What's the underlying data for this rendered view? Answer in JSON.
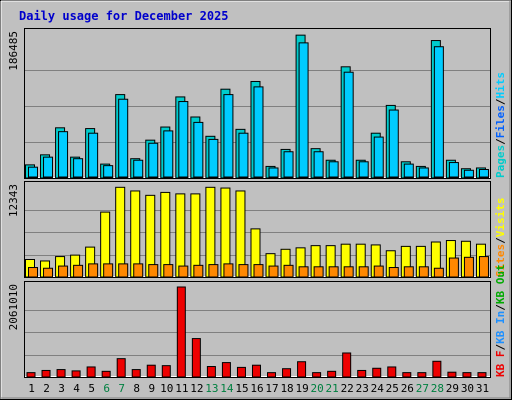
{
  "title": "Daily usage for December 2025",
  "colors": {
    "background": "#c0c0c0",
    "panel": "#c0c0c0",
    "grid": "#808080",
    "hits": "#00ccff",
    "files": "#0060ff",
    "pages": "#00cccc",
    "visits": "#ffff00",
    "sites": "#ff8800",
    "kbytes": "#ee0000",
    "kb_in": "#1e90ff",
    "kb_out": "#00aa00",
    "title_text": "#0000cc",
    "weekend_label": "#008040"
  },
  "chart_data": [
    {
      "type": "bar",
      "name": "hits-files-pages",
      "ylabel_max": "186485",
      "ylim": [
        0,
        186485
      ],
      "legend": [
        "Pages",
        "/",
        "Files",
        "/",
        "Hits"
      ],
      "legend_colors": [
        "pages",
        "black",
        "files",
        "black",
        "hits"
      ],
      "categories": [
        "1",
        "2",
        "3",
        "4",
        "5",
        "6",
        "7",
        "8",
        "9",
        "10",
        "11",
        "12",
        "13",
        "14",
        "15",
        "16",
        "17",
        "18",
        "19",
        "20",
        "21",
        "22",
        "23",
        "24",
        "25",
        "26",
        "27",
        "28",
        "29",
        "30",
        "31"
      ],
      "series": [
        {
          "name": "Hits",
          "values": [
            17000,
            30000,
            65000,
            27000,
            64000,
            18000,
            108000,
            25000,
            49000,
            66000,
            105000,
            79000,
            54000,
            115000,
            63000,
            125000,
            15000,
            37000,
            185000,
            38000,
            23000,
            144000,
            23000,
            58000,
            94000,
            21000,
            15000,
            178000,
            23000,
            12000,
            13000
          ]
        },
        {
          "name": "Files",
          "values": [
            14000,
            27000,
            60000,
            25000,
            58000,
            16000,
            102000,
            23000,
            45000,
            61000,
            99000,
            72000,
            50000,
            108000,
            58000,
            118000,
            13000,
            34000,
            175000,
            34000,
            21000,
            137000,
            21000,
            53000,
            88000,
            18000,
            13000,
            170000,
            20000,
            10000,
            11000
          ]
        },
        {
          "name": "Pages",
          "values": [
            500,
            600,
            800,
            500,
            700,
            400,
            900,
            500,
            600,
            700,
            900,
            800,
            600,
            900,
            700,
            900,
            400,
            600,
            1000,
            600,
            500,
            900,
            500,
            700,
            800,
            500,
            400,
            1000,
            500,
            400,
            400
          ]
        }
      ]
    },
    {
      "type": "bar",
      "name": "visits-sites",
      "ylabel_max": "12343",
      "ylim": [
        0,
        12343
      ],
      "legend": [
        "Sites",
        "/",
        "Visits"
      ],
      "legend_colors": [
        "sites",
        "black",
        "visits"
      ],
      "categories": [
        "1",
        "2",
        "3",
        "4",
        "5",
        "6",
        "7",
        "8",
        "9",
        "10",
        "11",
        "12",
        "13",
        "14",
        "15",
        "16",
        "17",
        "18",
        "19",
        "20",
        "21",
        "22",
        "23",
        "24",
        "25",
        "26",
        "27",
        "28",
        "29",
        "30",
        "31"
      ],
      "series": [
        {
          "name": "Visits",
          "values": [
            2400,
            2200,
            2800,
            3000,
            4100,
            8900,
            12300,
            11800,
            11200,
            11600,
            11400,
            11400,
            12300,
            12200,
            11800,
            6600,
            3200,
            3800,
            4000,
            4300,
            4300,
            4500,
            4500,
            4400,
            3600,
            4200,
            4200,
            4800,
            5000,
            4900,
            4500
          ]
        },
        {
          "name": "Sites",
          "values": [
            1300,
            1200,
            1500,
            1600,
            1800,
            1800,
            1800,
            1800,
            1700,
            1700,
            1500,
            1600,
            1700,
            1800,
            1700,
            1700,
            1500,
            1600,
            1400,
            1400,
            1400,
            1400,
            1400,
            1500,
            1300,
            1400,
            1400,
            1200,
            2600,
            2700,
            2800
          ]
        }
      ]
    },
    {
      "type": "bar",
      "name": "kbytes",
      "ylabel_max": "2061010",
      "ylim": [
        0,
        2061010
      ],
      "legend": [
        "KB F",
        "/",
        "KB In",
        "/",
        "KB Out"
      ],
      "legend_colors": [
        "kbytes",
        "black",
        "kb_in",
        "black",
        "kb_out"
      ],
      "categories": [
        "1",
        "2",
        "3",
        "4",
        "5",
        "6",
        "7",
        "8",
        "9",
        "10",
        "11",
        "12",
        "13",
        "14",
        "15",
        "16",
        "17",
        "18",
        "19",
        "20",
        "21",
        "22",
        "23",
        "24",
        "25",
        "26",
        "27",
        "28",
        "29",
        "30",
        "31"
      ],
      "series": [
        {
          "name": "KB F",
          "values": [
            100000,
            150000,
            170000,
            140000,
            230000,
            130000,
            420000,
            170000,
            270000,
            260000,
            2061010,
            880000,
            240000,
            330000,
            220000,
            270000,
            100000,
            190000,
            350000,
            100000,
            130000,
            550000,
            150000,
            200000,
            230000,
            100000,
            100000,
            360000,
            110000,
            100000,
            100000
          ]
        }
      ]
    }
  ],
  "x_axis": {
    "labels": [
      "1",
      "2",
      "3",
      "4",
      "5",
      "6",
      "7",
      "8",
      "9",
      "10",
      "11",
      "12",
      "13",
      "14",
      "15",
      "16",
      "17",
      "18",
      "19",
      "20",
      "21",
      "22",
      "23",
      "24",
      "25",
      "26",
      "27",
      "28",
      "29",
      "30",
      "31"
    ],
    "weekends": [
      "6",
      "7",
      "13",
      "14",
      "20",
      "21",
      "27",
      "28"
    ]
  }
}
